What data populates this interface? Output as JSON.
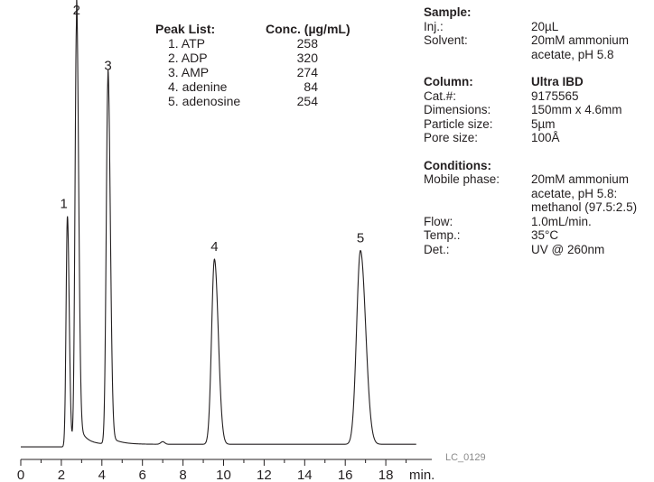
{
  "chart_data": {
    "type": "line",
    "xlabel": "min.",
    "xlim": [
      0,
      19.5
    ],
    "ylim": [
      0,
      1.0
    ],
    "x_ticks": [
      0,
      2,
      4,
      6,
      8,
      10,
      12,
      14,
      16,
      18
    ],
    "x_tick_labels": [
      "0",
      "2",
      "4",
      "6",
      "8",
      "10",
      "12",
      "14",
      "16",
      "18"
    ],
    "peaks": [
      {
        "label": "1",
        "retention_time": 2.3,
        "height": 0.53
      },
      {
        "label": "2",
        "retention_time": 2.75,
        "height": 0.98
      },
      {
        "label": "3",
        "retention_time": 4.3,
        "height": 0.85
      },
      {
        "label": "4",
        "retention_time": 9.55,
        "height": 0.43
      },
      {
        "label": "5",
        "retention_time": 16.75,
        "height": 0.45
      }
    ],
    "figure_code": "LC_0129"
  },
  "peak_list": {
    "title": "Peak List:",
    "conc_header": "Conc. (µg/mL)",
    "items": [
      {
        "name": "1. ATP",
        "conc": "258"
      },
      {
        "name": "2. ADP",
        "conc": "320"
      },
      {
        "name": "3. AMP",
        "conc": "274"
      },
      {
        "name": "4. adenine",
        "conc": "84"
      },
      {
        "name": "5. adenosine",
        "conc": "254"
      }
    ]
  },
  "info": {
    "sample": {
      "title": "Sample:",
      "rows": [
        {
          "k": "Inj.:",
          "v": "20µL"
        },
        {
          "k": "Solvent:",
          "v": "20mM ammonium acetate, pH 5.8"
        }
      ]
    },
    "column": {
      "title": "Column:",
      "name": "Ultra IBD",
      "rows": [
        {
          "k": "Cat.#:",
          "v": "9175565"
        },
        {
          "k": "Dimensions:",
          "v": "150mm x 4.6mm"
        },
        {
          "k": "Particle size:",
          "v": "5µm"
        },
        {
          "k": "Pore size:",
          "v": "100Å"
        }
      ]
    },
    "conditions": {
      "title": "Conditions:",
      "rows": [
        {
          "k": "Mobile phase:",
          "v": "20mM ammonium acetate, pH 5.8: methanol (97.5:2.5)"
        },
        {
          "k": "Flow:",
          "v": "1.0mL/min."
        },
        {
          "k": "Temp.:",
          "v": "35°C"
        },
        {
          "k": "Det.:",
          "v": "UV @ 260nm"
        }
      ]
    }
  }
}
